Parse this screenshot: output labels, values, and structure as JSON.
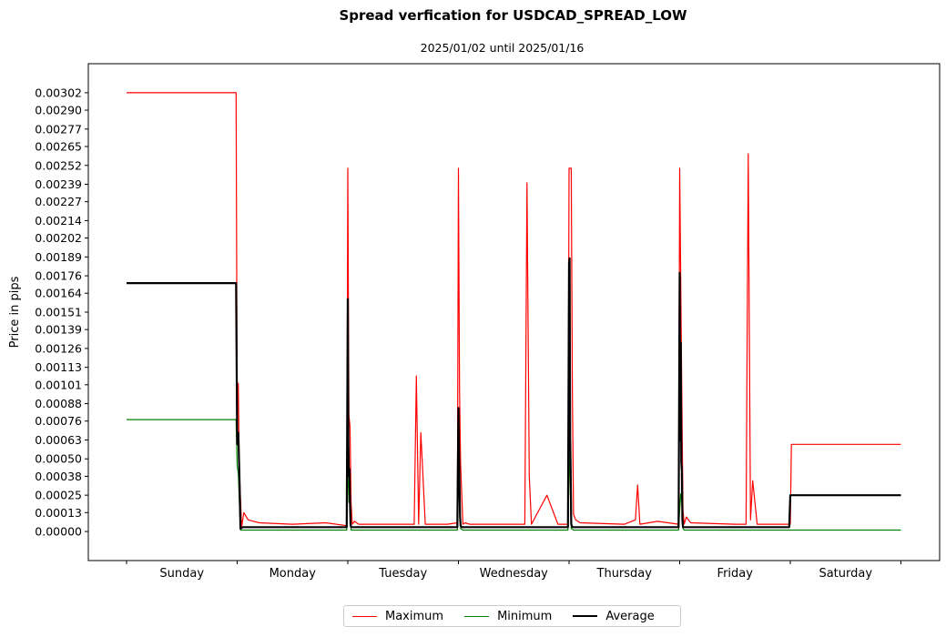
{
  "chart_data": {
    "type": "line",
    "title": "Spread verfication for USDCAD_SPREAD_LOW",
    "subtitle": "2025/01/02 until 2025/01/16",
    "ylabel": "Price in pips",
    "xlabel": "",
    "ylim": [
      -0.0002,
      0.00322
    ],
    "yticks": [
      "0.00000",
      "0.00013",
      "0.00025",
      "0.00038",
      "0.00050",
      "0.00063",
      "0.00076",
      "0.00088",
      "0.00101",
      "0.00113",
      "0.00126",
      "0.00139",
      "0.00151",
      "0.00164",
      "0.00176",
      "0.00189",
      "0.00202",
      "0.00214",
      "0.00227",
      "0.00239",
      "0.00252",
      "0.00265",
      "0.00277",
      "0.00290",
      "0.00302"
    ],
    "categories": [
      "Sunday",
      "Monday",
      "Tuesday",
      "Wednesday",
      "Thursday",
      "Friday",
      "Saturday"
    ],
    "legend_position": "bottom-center",
    "grid": false,
    "series": [
      {
        "name": "Maximum",
        "color": "#ff0000",
        "x": [
          0,
          0.99,
          1.0,
          1.01,
          1.02,
          1.04,
          1.06,
          1.1,
          1.2,
          1.5,
          1.8,
          1.99,
          2.0,
          2.01,
          2.02,
          2.03,
          2.04,
          2.06,
          2.1,
          2.5,
          2.6,
          2.62,
          2.64,
          2.66,
          2.7,
          2.9,
          2.99,
          3.0,
          3.01,
          3.02,
          3.04,
          3.06,
          3.1,
          3.5,
          3.6,
          3.62,
          3.64,
          3.66,
          3.8,
          3.9,
          3.99,
          4.0,
          4.02,
          4.03,
          4.04,
          4.06,
          4.1,
          4.5,
          4.6,
          4.62,
          4.64,
          4.8,
          4.99,
          5.0,
          5.01,
          5.02,
          5.03,
          5.04,
          5.06,
          5.1,
          5.5,
          5.6,
          5.62,
          5.64,
          5.66,
          5.7,
          5.9,
          5.99,
          6.0,
          6.01,
          7.0
        ],
        "y": [
          0.00302,
          0.00302,
          0.0008,
          0.00102,
          0.00042,
          3e-05,
          0.00013,
          8e-05,
          6e-05,
          5e-05,
          6e-05,
          4e-05,
          0.0025,
          0.0008,
          0.00072,
          0.0002,
          5e-05,
          7e-05,
          5e-05,
          5e-05,
          5e-05,
          0.00107,
          5e-05,
          0.00068,
          5e-05,
          5e-05,
          6e-05,
          0.0025,
          0.00098,
          0.00046,
          5e-05,
          6e-05,
          5e-05,
          5e-05,
          5e-05,
          0.0024,
          0.00038,
          5e-05,
          0.00025,
          5e-05,
          5e-05,
          0.0025,
          0.0025,
          0.001,
          0.00012,
          8e-05,
          6e-05,
          5e-05,
          8e-05,
          0.00032,
          5e-05,
          7e-05,
          5e-05,
          0.0025,
          0.0017,
          0.0009,
          0.00015,
          5e-05,
          0.0001,
          6e-05,
          5e-05,
          5e-05,
          0.0026,
          8e-05,
          0.00035,
          5e-05,
          5e-05,
          5e-05,
          5e-05,
          0.0006,
          0.0006
        ]
      },
      {
        "name": "Minimum",
        "color": "#008000",
        "x": [
          0,
          0.99,
          1.0,
          1.01,
          1.03,
          1.1,
          1.99,
          2.0,
          2.01,
          2.02,
          2.03,
          2.04,
          2.1,
          2.99,
          3.0,
          3.01,
          3.02,
          3.04,
          3.1,
          3.99,
          4.0,
          4.01,
          4.02,
          4.04,
          4.1,
          4.99,
          5.0,
          5.01,
          5.02,
          5.03,
          5.04,
          5.1,
          6.0,
          7.0
        ],
        "y": [
          0.00077,
          0.00077,
          0.00045,
          0.0004,
          1e-05,
          1e-05,
          1e-05,
          0.0005,
          0.0002,
          0.00026,
          1e-05,
          1e-05,
          1e-05,
          1e-05,
          0.0004,
          0.00015,
          2e-05,
          1e-05,
          1e-05,
          1e-05,
          0.0006,
          0.0003,
          2e-05,
          1e-05,
          1e-05,
          1e-05,
          0.00015,
          0.00026,
          0.0002,
          2e-05,
          1e-05,
          1e-05,
          1e-05,
          1e-05
        ]
      },
      {
        "name": "Average",
        "color": "#000000",
        "x": [
          0,
          0.99,
          1.0,
          1.01,
          1.02,
          1.03,
          1.05,
          1.3,
          1.7,
          1.99,
          2.0,
          2.005,
          2.01,
          2.015,
          2.02,
          2.025,
          2.03,
          2.04,
          2.06,
          2.5,
          2.99,
          3.0,
          3.005,
          3.01,
          3.015,
          3.02,
          3.03,
          3.05,
          3.5,
          3.99,
          4.0,
          4.005,
          4.01,
          4.015,
          4.02,
          4.03,
          4.05,
          4.5,
          4.99,
          5.0,
          5.005,
          5.01,
          5.015,
          5.02,
          5.025,
          5.03,
          5.05,
          5.5,
          5.99,
          6.0,
          6.01,
          7.0
        ],
        "y": [
          0.00171,
          0.00171,
          0.0006,
          0.00068,
          0.0004,
          2e-05,
          3e-05,
          3e-05,
          3e-05,
          3e-05,
          0.0016,
          0.00063,
          0.00038,
          0.00043,
          0.0002,
          5e-05,
          3e-05,
          3e-05,
          3e-05,
          3e-05,
          3e-05,
          0.00085,
          0.00058,
          0.00032,
          0.0001,
          4e-05,
          3e-05,
          3e-05,
          3e-05,
          3e-05,
          0.00185,
          0.00188,
          0.00065,
          0.0004,
          5e-05,
          3e-05,
          3e-05,
          3e-05,
          3e-05,
          0.00178,
          0.00063,
          0.0013,
          0.00048,
          0.00042,
          8e-05,
          3e-05,
          3e-05,
          3e-05,
          3e-05,
          0.00025,
          0.00025,
          0.00025
        ]
      }
    ]
  }
}
